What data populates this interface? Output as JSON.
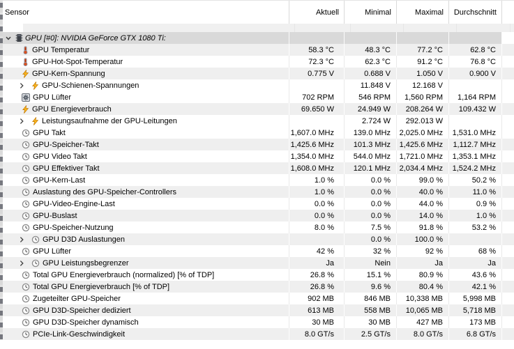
{
  "header": {
    "sensor": "Sensor",
    "columns": [
      "Aktuell",
      "Minimal",
      "Maximal",
      "Durchschnitt"
    ]
  },
  "group": {
    "label": "GPU [#0]: NVIDIA GeForce GTX 1080 Ti:",
    "icon": "chip",
    "expander": "chevron-down"
  },
  "colors": {
    "row_alt": "#efefef",
    "group_bg": "#d9d9d9",
    "thermometer": "#e05a2b",
    "lightning": "#ffb81e",
    "fan": "#4e5660",
    "clock": "#8d8d8d"
  },
  "rows": [
    {
      "label": "GPU Temperatur",
      "icon": "thermometer",
      "expandable": false,
      "shaded": true,
      "values": [
        "58.3 °C",
        "48.3 °C",
        "77.2 °C",
        "62.8 °C"
      ]
    },
    {
      "label": "GPU-Hot-Spot-Temperatur",
      "icon": "thermometer",
      "expandable": false,
      "shaded": false,
      "values": [
        "72.3 °C",
        "62.3 °C",
        "91.2 °C",
        "76.8 °C"
      ]
    },
    {
      "label": "GPU-Kern-Spannung",
      "icon": "lightning",
      "expandable": false,
      "shaded": true,
      "values": [
        "0.775 V",
        "0.688 V",
        "1.050 V",
        "0.900 V"
      ]
    },
    {
      "label": "GPU-Schienen-Spannungen",
      "icon": "lightning",
      "expandable": true,
      "shaded": false,
      "values": [
        "",
        "11.848 V",
        "12.168 V",
        ""
      ]
    },
    {
      "label": "GPU Lüfter",
      "icon": "fan",
      "expandable": false,
      "shaded": false,
      "values": [
        "702 RPM",
        "546 RPM",
        "1,560 RPM",
        "1,164 RPM"
      ]
    },
    {
      "label": "GPU Energieverbrauch",
      "icon": "lightning",
      "expandable": false,
      "shaded": true,
      "values": [
        "69.650 W",
        "24.949 W",
        "208.264 W",
        "109.432 W"
      ]
    },
    {
      "label": "Leistungsaufnahme der GPU-Leitungen",
      "icon": "lightning",
      "expandable": true,
      "shaded": false,
      "values": [
        "",
        "2.724 W",
        "292.013 W",
        ""
      ]
    },
    {
      "label": "GPU Takt",
      "icon": "clock",
      "expandable": false,
      "shaded": false,
      "values": [
        "1,607.0 MHz",
        "139.0 MHz",
        "2,025.0 MHz",
        "1,531.0 MHz"
      ]
    },
    {
      "label": "GPU-Speicher-Takt",
      "icon": "clock",
      "expandable": false,
      "shaded": true,
      "values": [
        "1,425.6 MHz",
        "101.3 MHz",
        "1,425.6 MHz",
        "1,112.7 MHz"
      ]
    },
    {
      "label": "GPU Video Takt",
      "icon": "clock",
      "expandable": false,
      "shaded": false,
      "values": [
        "1,354.0 MHz",
        "544.0 MHz",
        "1,721.0 MHz",
        "1,353.1 MHz"
      ]
    },
    {
      "label": "GPU Effektiver Takt",
      "icon": "clock",
      "expandable": false,
      "shaded": true,
      "values": [
        "1,608.0 MHz",
        "120.1 MHz",
        "2,034.4 MHz",
        "1,524.2 MHz"
      ]
    },
    {
      "label": "GPU-Kern-Last",
      "icon": "clock",
      "expandable": false,
      "shaded": false,
      "values": [
        "1.0 %",
        "0.0 %",
        "99.0 %",
        "50.2 %"
      ]
    },
    {
      "label": "Auslastung des GPU-Speicher-Controllers",
      "icon": "clock",
      "expandable": false,
      "shaded": true,
      "values": [
        "1.0 %",
        "0.0 %",
        "40.0 %",
        "11.0 %"
      ]
    },
    {
      "label": "GPU-Video-Engine-Last",
      "icon": "clock",
      "expandable": false,
      "shaded": false,
      "values": [
        "0.0 %",
        "0.0 %",
        "44.0 %",
        "0.9 %"
      ]
    },
    {
      "label": "GPU-Buslast",
      "icon": "clock",
      "expandable": false,
      "shaded": true,
      "values": [
        "0.0 %",
        "0.0 %",
        "14.0 %",
        "1.0 %"
      ]
    },
    {
      "label": "GPU-Speicher-Nutzung",
      "icon": "clock",
      "expandable": false,
      "shaded": false,
      "values": [
        "8.0 %",
        "7.5 %",
        "91.8 %",
        "53.2 %"
      ]
    },
    {
      "label": "GPU D3D Auslastungen",
      "icon": "clock",
      "expandable": true,
      "shaded": true,
      "values": [
        "",
        "0.0 %",
        "100.0 %",
        ""
      ]
    },
    {
      "label": "GPU Lüfter",
      "icon": "clock",
      "expandable": false,
      "shaded": false,
      "values": [
        "42 %",
        "32 %",
        "92 %",
        "68 %"
      ]
    },
    {
      "label": "GPU Leistungsbegrenzer",
      "icon": "clock",
      "expandable": true,
      "shaded": true,
      "values": [
        "Ja",
        "Nein",
        "Ja",
        "Ja"
      ]
    },
    {
      "label": "Total GPU Energieverbrauch (normalized) [% of TDP]",
      "icon": "clock",
      "expandable": false,
      "shaded": false,
      "values": [
        "26.8 %",
        "15.1 %",
        "80.9 %",
        "43.6 %"
      ]
    },
    {
      "label": "Total GPU Energieverbrauch [% of TDP]",
      "icon": "clock",
      "expandable": false,
      "shaded": true,
      "values": [
        "26.8 %",
        "9.6 %",
        "80.4 %",
        "42.1 %"
      ]
    },
    {
      "label": "Zugeteilter GPU-Speicher",
      "icon": "clock",
      "expandable": false,
      "shaded": false,
      "values": [
        "902 MB",
        "846 MB",
        "10,338 MB",
        "5,998 MB"
      ]
    },
    {
      "label": "GPU D3D-Speicher dediziert",
      "icon": "clock",
      "expandable": false,
      "shaded": true,
      "values": [
        "613 MB",
        "558 MB",
        "10,065 MB",
        "5,718 MB"
      ]
    },
    {
      "label": "GPU D3D-Speicher dynamisch",
      "icon": "clock",
      "expandable": false,
      "shaded": false,
      "values": [
        "30 MB",
        "30 MB",
        "427 MB",
        "173 MB"
      ]
    },
    {
      "label": "PCIe-Link-Geschwindigkeit",
      "icon": "clock",
      "expandable": false,
      "shaded": true,
      "values": [
        "8.0 GT/s",
        "2.5 GT/s",
        "8.0 GT/s",
        "6.8 GT/s"
      ]
    }
  ]
}
